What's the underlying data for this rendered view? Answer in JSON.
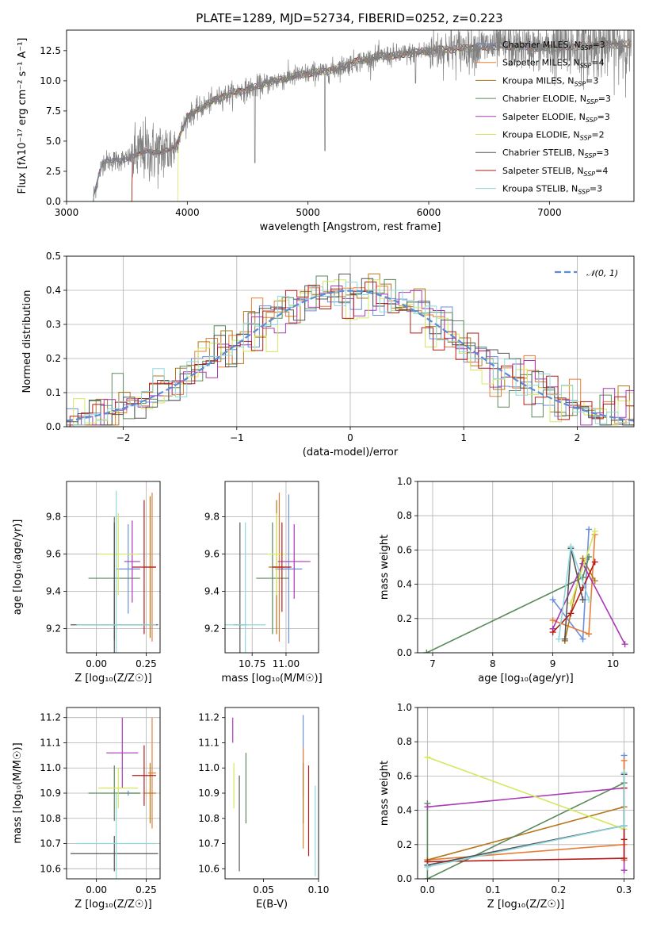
{
  "figure": {
    "title": "PLATE=1289, MJD=52734, FIBERID=0252, z=0.223"
  },
  "models": [
    {
      "name": "Chabrier MILES",
      "nssp": 3,
      "color": "#6c8ede"
    },
    {
      "name": "Salpeter MILES",
      "nssp": 4,
      "color": "#ea7d35"
    },
    {
      "name": "Kroupa MILES",
      "nssp": 3,
      "color": "#b5771a"
    },
    {
      "name": "Chabrier ELODIE",
      "nssp": 3,
      "color": "#5b8a5b"
    },
    {
      "name": "Salpeter ELODIE",
      "nssp": 3,
      "color": "#a93ab5"
    },
    {
      "name": "Kroupa ELODIE",
      "nssp": 2,
      "color": "#d4e85e"
    },
    {
      "name": "Chabrier STELIB",
      "nssp": 3,
      "color": "#555555"
    },
    {
      "name": "Salpeter STELIB",
      "nssp": 4,
      "color": "#b51b1b"
    },
    {
      "name": "Kroupa STELIB",
      "nssp": 3,
      "color": "#8fd8dc"
    }
  ],
  "chart_data": [
    {
      "id": "spectrum",
      "type": "line",
      "xlabel": "wavelength [Angstrom, rest frame]",
      "ylabel": "Flux [fλ10⁻¹⁷ erg cm⁻² s⁻¹ A⁻¹]",
      "xlim": [
        3000,
        7700
      ],
      "ylim": [
        0,
        14.2
      ],
      "xticks": [
        3000,
        4000,
        5000,
        6000,
        7000
      ],
      "yticks": [
        0.0,
        2.5,
        5.0,
        7.5,
        10.0,
        12.5
      ],
      "legend_position": "top-right",
      "data_color": "#808080",
      "continuum": {
        "x": [
          3220,
          3300,
          3500,
          3650,
          3750,
          3900,
          4000,
          4100,
          4300,
          4500,
          4800,
          5000,
          5200,
          5400,
          5600,
          5800,
          6000,
          6300,
          6600,
          7000,
          7400
        ],
        "y": [
          0.4,
          3.3,
          3.5,
          4.2,
          4.0,
          4.5,
          7.0,
          7.7,
          8.8,
          9.3,
          10.2,
          10.6,
          10.9,
          11.6,
          12.0,
          12.2,
          12.5,
          12.7,
          12.9,
          12.7,
          13.0
        ]
      }
    },
    {
      "id": "residuals",
      "type": "line",
      "xlabel": "(data-model)/error",
      "ylabel": "Normed distribution",
      "xlim": [
        -2.5,
        2.5
      ],
      "ylim": [
        0,
        0.5
      ],
      "xticks": [
        -2,
        -1,
        0,
        1,
        2
      ],
      "yticks": [
        0.0,
        0.1,
        0.2,
        0.3,
        0.4,
        0.5
      ],
      "grid": true,
      "legend_position": "top-right",
      "reference_label": "𝒩(0, 1)",
      "reference_color": "#5b8bd6",
      "bin_width": 0.1
    },
    {
      "id": "age-Z",
      "type": "scatter",
      "xlabel": "Z [log₁₀(Z/Z☉)]",
      "ylabel": "age  [log₁₀(age/yr)]",
      "xlim": [
        -0.15,
        0.32
      ],
      "ylim": [
        9.07,
        9.99
      ],
      "xticks": [
        0.0,
        0.25
      ],
      "yticks": [
        9.2,
        9.4,
        9.6,
        9.8
      ],
      "grid": true,
      "points": [
        {
          "x": 0.16,
          "xerr": 0.06,
          "y": 9.52,
          "yerr": 0.24,
          "c": 0
        },
        {
          "x": 0.28,
          "xerr": 0.02,
          "y": 9.53,
          "yerr": 0.4,
          "c": 1
        },
        {
          "x": 0.27,
          "xerr": 0.03,
          "y": 9.53,
          "yerr": 0.38,
          "c": 2
        },
        {
          "x": 0.09,
          "xerr": 0.13,
          "y": 9.47,
          "yerr": 0.33,
          "c": 3
        },
        {
          "x": 0.18,
          "xerr": 0.04,
          "y": 9.56,
          "yerr": 0.22,
          "c": 4
        },
        {
          "x": 0.11,
          "xerr": 0.1,
          "y": 9.6,
          "yerr": 0.22,
          "c": 5
        },
        {
          "x": 0.09,
          "xerr": 0.22,
          "y": 9.22,
          "yerr": 0.55,
          "c": 6
        },
        {
          "x": 0.24,
          "xerr": 0.06,
          "y": 9.53,
          "yerr": 0.36,
          "c": 7
        },
        {
          "x": 0.1,
          "xerr": 0.2,
          "y": 9.22,
          "yerr": 0.72,
          "c": 8
        }
      ]
    },
    {
      "id": "age-mass",
      "type": "scatter",
      "xlabel": "mass [log₁₀(M/M☉)]",
      "ylabel": "",
      "xlim": [
        10.55,
        11.24
      ],
      "ylim": [
        9.07,
        9.99
      ],
      "xticks": [
        10.75,
        11.0
      ],
      "yticks": [
        9.2,
        9.4,
        9.6,
        9.8
      ],
      "grid": true,
      "points": [
        {
          "x": 11.02,
          "xerr": 0.1,
          "y": 9.52,
          "yerr": 0.4,
          "c": 0
        },
        {
          "x": 10.95,
          "xerr": 0.08,
          "y": 9.53,
          "yerr": 0.4,
          "c": 1
        },
        {
          "x": 10.93,
          "xerr": 0.05,
          "y": 9.53,
          "yerr": 0.36,
          "c": 2
        },
        {
          "x": 10.9,
          "xerr": 0.12,
          "y": 9.47,
          "yerr": 0.3,
          "c": 3
        },
        {
          "x": 11.06,
          "xerr": 0.12,
          "y": 9.56,
          "yerr": 0.2,
          "c": 4
        },
        {
          "x": 10.93,
          "xerr": 0.07,
          "y": 9.6,
          "yerr": 0.22,
          "c": 5
        },
        {
          "x": 10.66,
          "xerr": 0.05,
          "y": 9.22,
          "yerr": 0.55,
          "c": 6
        },
        {
          "x": 10.97,
          "xerr": 0.07,
          "y": 9.53,
          "yerr": 0.24,
          "c": 7
        },
        {
          "x": 10.7,
          "xerr": 0.15,
          "y": 9.22,
          "yerr": 0.55,
          "c": 8
        }
      ]
    },
    {
      "id": "weight-age",
      "type": "line",
      "xlabel": "age  [log₁₀(age/yr)]",
      "ylabel": "mass weight",
      "xlim": [
        6.75,
        10.35
      ],
      "ylim": [
        0,
        1.0
      ],
      "xticks": [
        7,
        8,
        9,
        10
      ],
      "yticks": [
        0.0,
        0.2,
        0.4,
        0.6,
        0.8,
        1.0
      ],
      "grid": true,
      "series": [
        {
          "c": 0,
          "x": [
            9.0,
            9.5,
            9.6
          ],
          "y": [
            0.31,
            0.08,
            0.72
          ]
        },
        {
          "c": 1,
          "x": [
            9.0,
            9.6,
            9.7
          ],
          "y": [
            0.19,
            0.11,
            0.69
          ]
        },
        {
          "c": 2,
          "x": [
            9.2,
            9.5,
            9.7
          ],
          "y": [
            0.07,
            0.55,
            0.42
          ]
        },
        {
          "c": 3,
          "x": [
            6.9,
            9.5,
            9.6
          ],
          "y": [
            0.0,
            0.44,
            0.56
          ]
        },
        {
          "c": 4,
          "x": [
            9.0,
            9.5,
            10.2
          ],
          "y": [
            0.14,
            0.52,
            0.05
          ]
        },
        {
          "c": 5,
          "x": [
            9.3,
            9.7
          ],
          "y": [
            0.29,
            0.71
          ]
        },
        {
          "c": 6,
          "x": [
            9.2,
            9.3,
            9.5
          ],
          "y": [
            0.08,
            0.61,
            0.31
          ]
        },
        {
          "c": 7,
          "x": [
            9.0,
            9.3,
            9.5,
            9.7
          ],
          "y": [
            0.12,
            0.23,
            0.38,
            0.53
          ]
        },
        {
          "c": 8,
          "x": [
            9.1,
            9.3,
            9.6
          ],
          "y": [
            0.08,
            0.62,
            0.31
          ]
        }
      ]
    },
    {
      "id": "mass-Z",
      "type": "scatter",
      "xlabel": "Z [log₁₀(Z/Z☉)]",
      "ylabel": "mass [log₁₀(M/M☉)]",
      "xlim": [
        -0.15,
        0.32
      ],
      "ylim": [
        10.56,
        11.24
      ],
      "xticks": [
        0.0,
        0.25
      ],
      "yticks": [
        10.6,
        10.7,
        10.8,
        10.9,
        11.0,
        11.1,
        11.2
      ],
      "grid": true,
      "points": [
        {
          "x": 0.16,
          "xerr": 0.06,
          "y": 10.9,
          "yerr": 0.01,
          "c": 0
        },
        {
          "x": 0.28,
          "xerr": 0.02,
          "y": 10.98,
          "yerr": 0.22,
          "c": 1
        },
        {
          "x": 0.27,
          "xerr": 0.03,
          "y": 10.9,
          "yerr": 0.12,
          "c": 2
        },
        {
          "x": 0.09,
          "xerr": 0.13,
          "y": 10.9,
          "yerr": 0.11,
          "c": 3
        },
        {
          "x": 0.13,
          "xerr": 0.08,
          "y": 11.06,
          "yerr": 0.14,
          "c": 4
        },
        {
          "x": 0.11,
          "xerr": 0.1,
          "y": 10.92,
          "yerr": 0.08,
          "c": 5
        },
        {
          "x": 0.09,
          "xerr": 0.22,
          "y": 10.66,
          "yerr": 0.07,
          "c": 6
        },
        {
          "x": 0.24,
          "xerr": 0.06,
          "y": 10.97,
          "yerr": 0.12,
          "c": 7
        },
        {
          "x": 0.1,
          "xerr": 0.2,
          "y": 10.7,
          "yerr": 0.2,
          "c": 8
        }
      ]
    },
    {
      "id": "mass-EBV",
      "type": "scatter",
      "xlabel": "E(B-V)",
      "ylabel": "",
      "xlim": [
        0.015,
        0.1
      ],
      "ylim": [
        10.56,
        11.24
      ],
      "xticks": [
        0.05,
        0.1
      ],
      "yticks": [
        10.6,
        10.7,
        10.8,
        10.9,
        11.0,
        11.1,
        11.2
      ],
      "grid": false,
      "points": [
        {
          "x": 0.086,
          "y": 11.05,
          "yerr": 0.16,
          "c": 0
        },
        {
          "x": 0.086,
          "y": 10.88,
          "yerr": 0.2,
          "c": 1
        },
        {
          "x": 0.086,
          "y": 10.9,
          "yerr": 0.12,
          "c": 2
        },
        {
          "x": 0.034,
          "y": 10.92,
          "yerr": 0.14,
          "c": 3
        },
        {
          "x": 0.022,
          "y": 11.15,
          "yerr": 0.05,
          "c": 4
        },
        {
          "x": 0.023,
          "y": 10.93,
          "yerr": 0.09,
          "c": 5
        },
        {
          "x": 0.028,
          "y": 10.78,
          "yerr": 0.19,
          "c": 6
        },
        {
          "x": 0.091,
          "y": 10.83,
          "yerr": 0.18,
          "c": 7
        },
        {
          "x": 0.097,
          "y": 10.75,
          "yerr": 0.18,
          "c": 8
        }
      ]
    },
    {
      "id": "weight-Z",
      "type": "line",
      "xlabel": "Z [log₁₀(Z/Z☉)]",
      "ylabel": "mass weight",
      "xlim": [
        -0.015,
        0.315
      ],
      "ylim": [
        0,
        1.0
      ],
      "xticks": [
        0.0,
        0.1,
        0.2,
        0.3
      ],
      "yticks": [
        0.0,
        0.2,
        0.4,
        0.6,
        0.8,
        1.0
      ],
      "grid": true,
      "series": [
        {
          "c": 0,
          "x": [
            0.0,
            0.3,
            0.3
          ],
          "y": [
            0.08,
            0.31,
            0.72
          ]
        },
        {
          "c": 1,
          "x": [
            0.0,
            0.3,
            0.3,
            0.3
          ],
          "y": [
            0.11,
            0.2,
            0.11,
            0.69
          ]
        },
        {
          "c": 2,
          "x": [
            0.0,
            0.3
          ],
          "y": [
            0.11,
            0.42
          ]
        },
        {
          "c": 3,
          "x": [
            0.0,
            0.0,
            0.3
          ],
          "y": [
            0.44,
            0.0,
            0.56
          ]
        },
        {
          "c": 4,
          "x": [
            0.0,
            0.3,
            0.3
          ],
          "y": [
            0.42,
            0.53,
            0.05
          ]
        },
        {
          "c": 5,
          "x": [
            0.0,
            0.3
          ],
          "y": [
            0.71,
            0.29
          ]
        },
        {
          "c": 6,
          "x": [
            0.0,
            0.3,
            0.3
          ],
          "y": [
            0.08,
            0.31,
            0.61
          ]
        },
        {
          "c": 7,
          "x": [
            0.0,
            0.3,
            0.3,
            0.3
          ],
          "y": [
            0.1,
            0.12,
            0.23,
            0.53
          ]
        },
        {
          "c": 8,
          "x": [
            0.0,
            0.3,
            0.3
          ],
          "y": [
            0.07,
            0.31,
            0.62
          ]
        }
      ]
    }
  ]
}
